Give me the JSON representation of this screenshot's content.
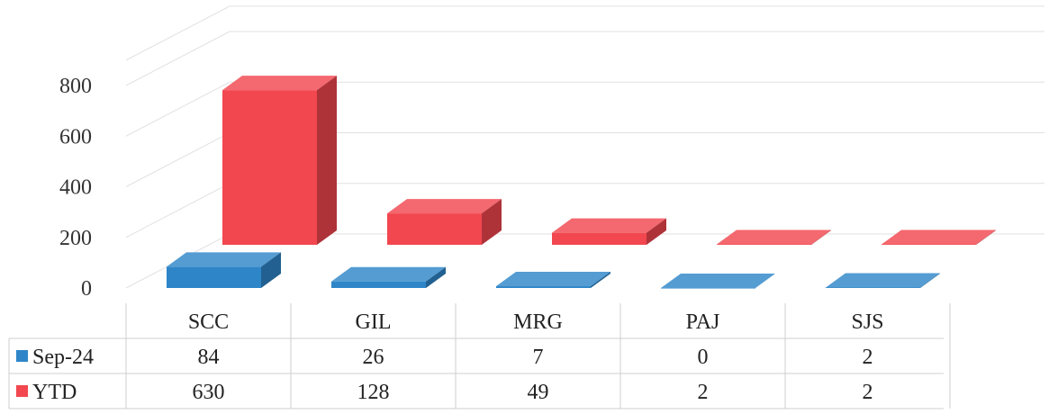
{
  "chart_data": {
    "type": "bar",
    "title": "",
    "xlabel": "",
    "ylabel": "",
    "categories": [
      "SCC",
      "GIL",
      "MRG",
      "PAJ",
      "SJS"
    ],
    "series": [
      {
        "name": "Sep-24",
        "values": [
          84,
          26,
          7,
          0,
          2
        ],
        "color": "#2e86c8"
      },
      {
        "name": "YTD",
        "values": [
          630,
          128,
          49,
          2,
          2
        ],
        "color": "#f2474f"
      }
    ],
    "yticks": [
      0,
      200,
      400,
      600,
      800
    ],
    "ylim": [
      0,
      900
    ],
    "grid": true,
    "data_table": true,
    "style": "3d-clustered-bar",
    "legend_placement": "data-table-left"
  }
}
